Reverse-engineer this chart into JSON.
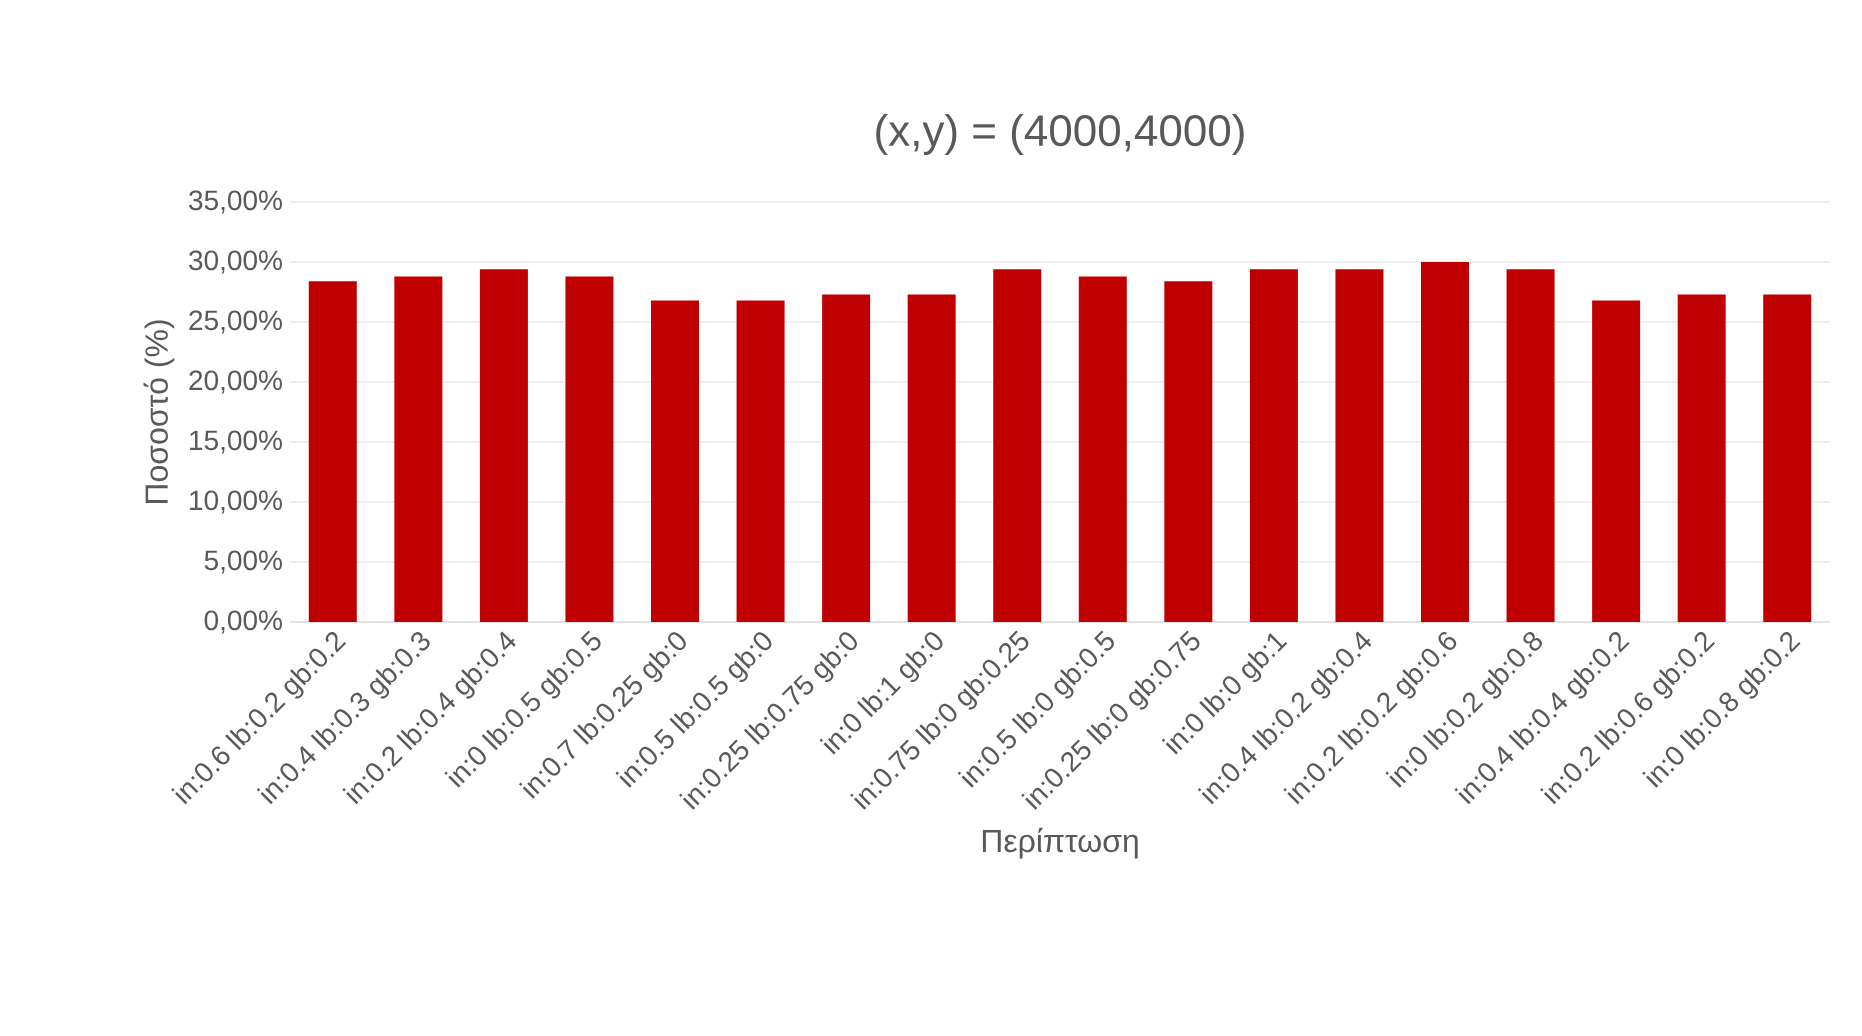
{
  "chart_data": {
    "type": "bar",
    "title": "(x,y) = (4000,4000)",
    "xlabel": "Περίπτωση",
    "ylabel": "Ποσοστό (%)",
    "categories": [
      "in:0.6 lb:0.2 gb:0.2",
      "in:0.4 lb:0.3 gb:0.3",
      "in:0.2 lb:0.4 gb:0.4",
      "in:0 lb:0.5 gb:0.5",
      "in:0.7 lb:0.25 gb:0",
      "in:0.5 lb:0.5 gb:0",
      "in:0.25 lb:0.75 gb:0",
      "in:0 lb:1 gb:0",
      "in:0.75 lb:0 gb:0.25",
      "in:0.5 lb:0 gb:0.5",
      "in:0.25 lb:0 gb:0.75",
      "in:0 lb:0 gb:1",
      "in:0.4 lb:0.2 gb:0.4",
      "in:0.2 lb:0.2 gb:0.6",
      "in:0 lb:0.2 gb:0.8",
      "in:0.4 lb:0.4 gb:0.2",
      "in:0.2 lb:0.6 gb:0.2",
      "in:0 lb:0.8 gb:0.2"
    ],
    "values": [
      28.4,
      28.8,
      29.4,
      28.8,
      26.8,
      26.8,
      27.3,
      27.3,
      29.4,
      28.8,
      28.4,
      29.4,
      29.4,
      30.0,
      29.4,
      26.8,
      27.3,
      27.3
    ],
    "color": "#c00000",
    "ylim": [
      0,
      35
    ],
    "yticks": [
      {
        "value": 0,
        "label": "0,00%"
      },
      {
        "value": 5,
        "label": "5,00%"
      },
      {
        "value": 10,
        "label": "10,00%"
      },
      {
        "value": 15,
        "label": "15,00%"
      },
      {
        "value": 20,
        "label": "20,00%"
      },
      {
        "value": 25,
        "label": "25,00%"
      },
      {
        "value": 30,
        "label": "30,00%"
      },
      {
        "value": 35,
        "label": "35,00%"
      }
    ],
    "grid": "y"
  }
}
